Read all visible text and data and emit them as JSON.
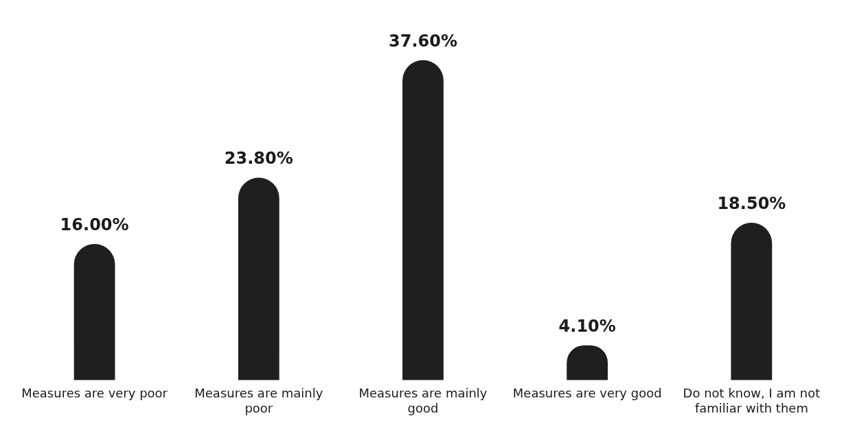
{
  "chart_data": {
    "type": "bar",
    "categories": [
      "Measures are very poor",
      "Measures are mainly poor",
      "Measures are mainly good",
      "Measures are very good",
      "Do not know, I am not familiar with them"
    ],
    "values": [
      16.0,
      23.8,
      37.6,
      4.1,
      18.5
    ],
    "value_labels": [
      "16.00%",
      "23.80%",
      "37.60%",
      "4.10%",
      "18.50%"
    ],
    "color": "#1f1f1f",
    "grid": false,
    "legend": false
  }
}
